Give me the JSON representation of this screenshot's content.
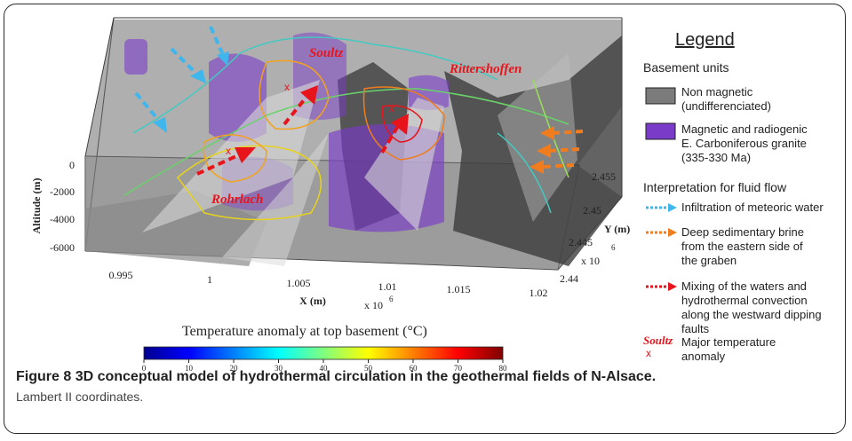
{
  "figure": {
    "label": "Figure 8",
    "title": "3D conceptual model of hydrothermal circulation in the geothermal fields of N-Alsace.",
    "subtitle": "Lambert II coordinates."
  },
  "axes": {
    "altitude_label": "Altitude (m)",
    "altitude_ticks": [
      "0",
      "-2000",
      "-4000",
      "-6000"
    ],
    "x_label": "X (m)",
    "x_multiplier": "x 10",
    "x_exp": "6",
    "x_ticks": [
      "0.995",
      "1",
      "1.005",
      "1.01",
      "1.015",
      "1.02"
    ],
    "y_label": "Y (m)",
    "y_multiplier": "x 10",
    "y_exp": "6",
    "y_ticks": [
      "2.455",
      "2.45",
      "2.445",
      "2.44"
    ]
  },
  "places": {
    "soultz": "Soultz",
    "rittershoffen": "Rittershoffen",
    "rohrlach": "Rohrlach",
    "marker": "x"
  },
  "colorbar": {
    "title": "Temperature anomaly at top basement (°C)",
    "ticks": [
      "0",
      "10",
      "20",
      "30",
      "40",
      "50",
      "60",
      "70",
      "80"
    ],
    "range": [
      0,
      80
    ],
    "colors": [
      "#00008f",
      "#0000ff",
      "#007fff",
      "#00ffff",
      "#7fff7f",
      "#ffff00",
      "#ff7f00",
      "#ff0000",
      "#7f0000"
    ]
  },
  "legend": {
    "title": "Legend",
    "basement_heading": "Basement units",
    "non_magnetic_1": "Non magnetic",
    "non_magnetic_2": "(undifferenciated)",
    "magnetic_1": "Magnetic and radiogenic",
    "magnetic_2": "E. Carboniferous granite",
    "magnetic_3": "(335-330 Ma)",
    "fluid_heading": "Interpretation for fluid flow",
    "infiltration": "Infiltration of meteoric water",
    "brine_1": "Deep sedimentary brine",
    "brine_2": "from the eastern side of",
    "brine_3": "the graben",
    "mixing_1": "Mixing of the waters and",
    "mixing_2": "hydrothermal convection",
    "mixing_3": "along the westward dipping",
    "mixing_4": "faults",
    "anomaly_name": "Soultz",
    "anomaly_marker": "x",
    "anomaly_1": "Major temperature",
    "anomaly_2": "anomaly",
    "colors": {
      "non_magnetic": "#7b7b7b",
      "magnetic": "#7a3cc8",
      "infiltration": "#3fb7ec",
      "brine": "#f07c1e",
      "mixing": "#e8141b"
    }
  }
}
